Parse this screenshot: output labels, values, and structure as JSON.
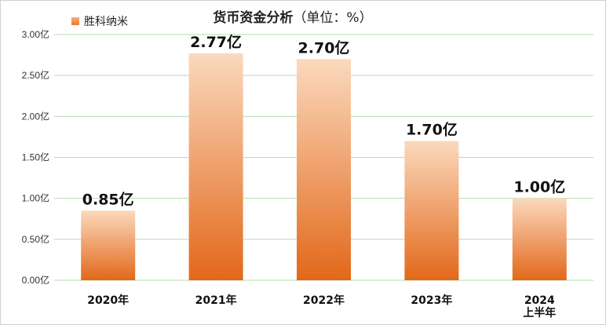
{
  "chart_data": {
    "type": "bar",
    "title": "货币资金分析",
    "title_unit": "（单位：%）",
    "categories": [
      [
        "2020年"
      ],
      [
        "2021年"
      ],
      [
        "2022年"
      ],
      [
        "2023年"
      ],
      [
        "2024",
        "上半年"
      ]
    ],
    "series": [
      {
        "name": "胜科纳米",
        "values": [
          0.85,
          2.77,
          2.7,
          1.7,
          1.0
        ],
        "data_labels": [
          "0.85亿",
          "2.77亿",
          "2.70亿",
          "1.70亿",
          "1.00亿"
        ]
      }
    ],
    "ylim": [
      0,
      3.0
    ],
    "yticks": [
      0.0,
      0.5,
      1.0,
      1.5,
      2.0,
      2.5,
      3.0
    ],
    "ytick_labels": [
      "0.00亿",
      "0.50亿",
      "1.00亿",
      "1.50亿",
      "2.00亿",
      "2.50亿",
      "3.00亿"
    ],
    "grid": true,
    "legend_position": "top-left",
    "colors": {
      "bar_top": "#fbd9bd",
      "bar_bottom": "#e2681a",
      "grid": "#b9dcb1",
      "legend_marker": "#e8792e"
    }
  }
}
